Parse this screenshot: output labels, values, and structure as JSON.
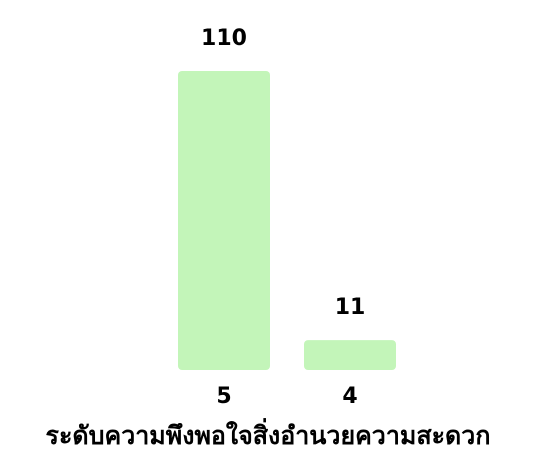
{
  "chart_data": {
    "type": "bar",
    "categories": [
      "5",
      "4"
    ],
    "values": [
      110,
      11
    ],
    "data_labels": [
      "110",
      "11"
    ],
    "xlabel": "ระดับความพึงพอใจสิ่งอำนวยความสะดวก",
    "ylim": [
      0,
      110
    ],
    "grid": false,
    "bar_color": "#c3f5b9"
  }
}
